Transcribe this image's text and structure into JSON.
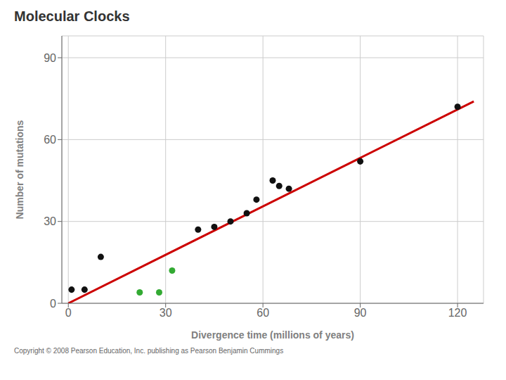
{
  "chart_data": {
    "type": "scatter",
    "title": "Molecular Clocks",
    "xlabel": "Divergence time (millions of years)",
    "ylabel": "Number of mutations",
    "xlim": [
      -2,
      128
    ],
    "ylim": [
      0,
      98
    ],
    "xticks": [
      0,
      30,
      60,
      90,
      120
    ],
    "yticks": [
      0,
      30,
      60,
      90
    ],
    "grid": true,
    "series": [
      {
        "type": "line",
        "color": "#cc0000",
        "x": [
          0,
          125
        ],
        "values": [
          0,
          74
        ]
      },
      {
        "type": "scatter",
        "color": "#111111",
        "x": [
          1,
          5,
          10,
          40,
          45,
          50,
          55,
          58,
          63,
          65,
          68,
          90,
          120
        ],
        "values": [
          5,
          5,
          17,
          27,
          28,
          30,
          33,
          38,
          45,
          43,
          42,
          52,
          72
        ]
      },
      {
        "type": "scatter",
        "color": "#33aa33",
        "x": [
          22,
          28,
          32
        ],
        "values": [
          4,
          4,
          12
        ]
      }
    ],
    "annotations": [
      "Copyright © 2008 Pearson Education, Inc. publishing as Pearson Benjamin Cummings"
    ]
  }
}
